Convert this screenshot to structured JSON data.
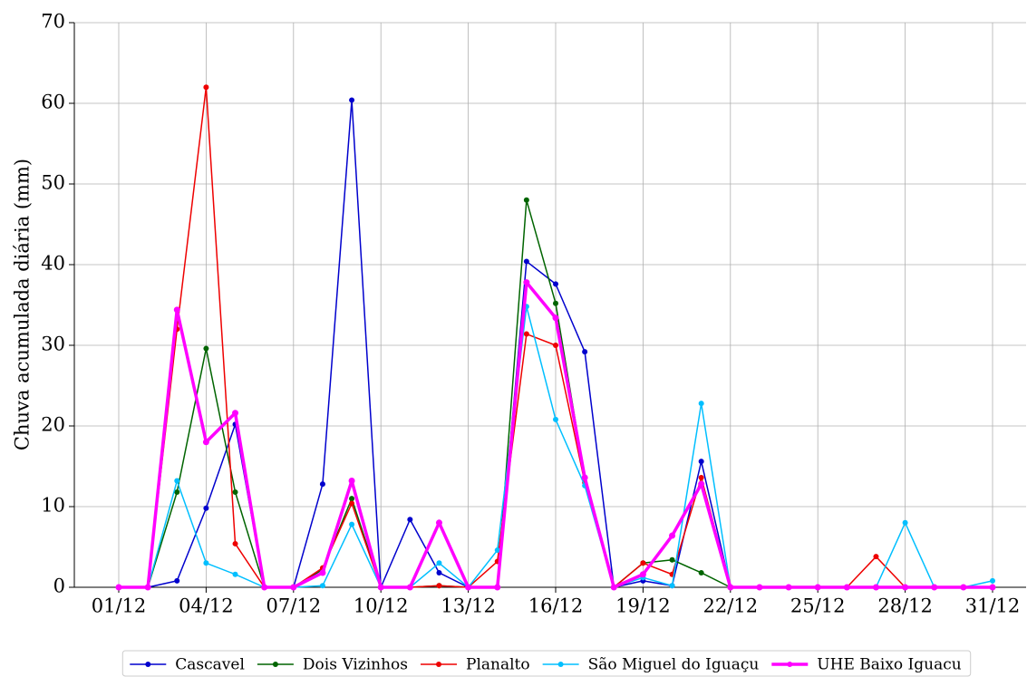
{
  "chart_data": {
    "type": "line",
    "y_label": "Chuva acumulada diária (mm)",
    "categories": [
      "01/12",
      null,
      null,
      "04/12",
      null,
      null,
      "07/12",
      null,
      null,
      "10/12",
      null,
      null,
      "13/12",
      null,
      null,
      "16/12",
      null,
      null,
      "19/12",
      null,
      null,
      "22/12",
      null,
      null,
      "25/12",
      null,
      null,
      "28/12",
      null,
      null,
      "31/12"
    ],
    "series": [
      {
        "name": "Cascavel",
        "color": "#0000cd",
        "linewidth": 1.5,
        "values": [
          0,
          0,
          0.8,
          9.8,
          20.2,
          0,
          0,
          12.8,
          60.4,
          0,
          8.4,
          1.8,
          0,
          0,
          40.4,
          37.6,
          29.2,
          0,
          0.8,
          0.2,
          15.6,
          0,
          0,
          0,
          0,
          0,
          0,
          0,
          0,
          0,
          0
        ]
      },
      {
        "name": "Dois Vizinhos",
        "color": "#006400",
        "linewidth": 1.5,
        "values": [
          0,
          0,
          11.8,
          29.6,
          11.8,
          0,
          0,
          2.2,
          11,
          0,
          0,
          0.2,
          0,
          0,
          48,
          35.2,
          13.6,
          0,
          3,
          3.4,
          1.8,
          0,
          0,
          0,
          0,
          0,
          0,
          0,
          0,
          0,
          0
        ]
      },
      {
        "name": "Planalto",
        "color": "#ee0000",
        "linewidth": 1.5,
        "values": [
          0,
          0,
          32,
          62,
          5.4,
          0,
          0,
          2.4,
          10.4,
          0,
          0,
          0.2,
          0,
          3.2,
          31.4,
          30,
          13,
          0,
          3,
          1.6,
          13.6,
          0,
          0,
          0,
          0,
          0,
          3.8,
          0,
          0,
          0,
          0
        ]
      },
      {
        "name": "São Miguel do Iguaçu",
        "color": "#00bfff",
        "linewidth": 1.5,
        "values": [
          0,
          0,
          13.2,
          3,
          1.6,
          0,
          0,
          0.2,
          7.8,
          0,
          0,
          3,
          0,
          4.6,
          34.8,
          20.8,
          12.6,
          0,
          1.2,
          0.2,
          22.8,
          0,
          0,
          0,
          0,
          0,
          0,
          8,
          0,
          0,
          0.8
        ]
      },
      {
        "name": "UHE Baixo Iguacu",
        "color": "#ff00ff",
        "linewidth": 3.5,
        "values": [
          0,
          0,
          34.4,
          18,
          21.6,
          0,
          0,
          1.8,
          13.2,
          0,
          0,
          8,
          0,
          0,
          37.8,
          33.4,
          13.6,
          0,
          1.6,
          6.4,
          12.8,
          0,
          0,
          0,
          0,
          0,
          0,
          0,
          0,
          0,
          0
        ]
      }
    ],
    "ylim": [
      0,
      70
    ],
    "yticks": [
      0,
      10,
      20,
      30,
      40,
      50,
      60,
      70
    ],
    "grid": true,
    "legend": "bottom"
  }
}
